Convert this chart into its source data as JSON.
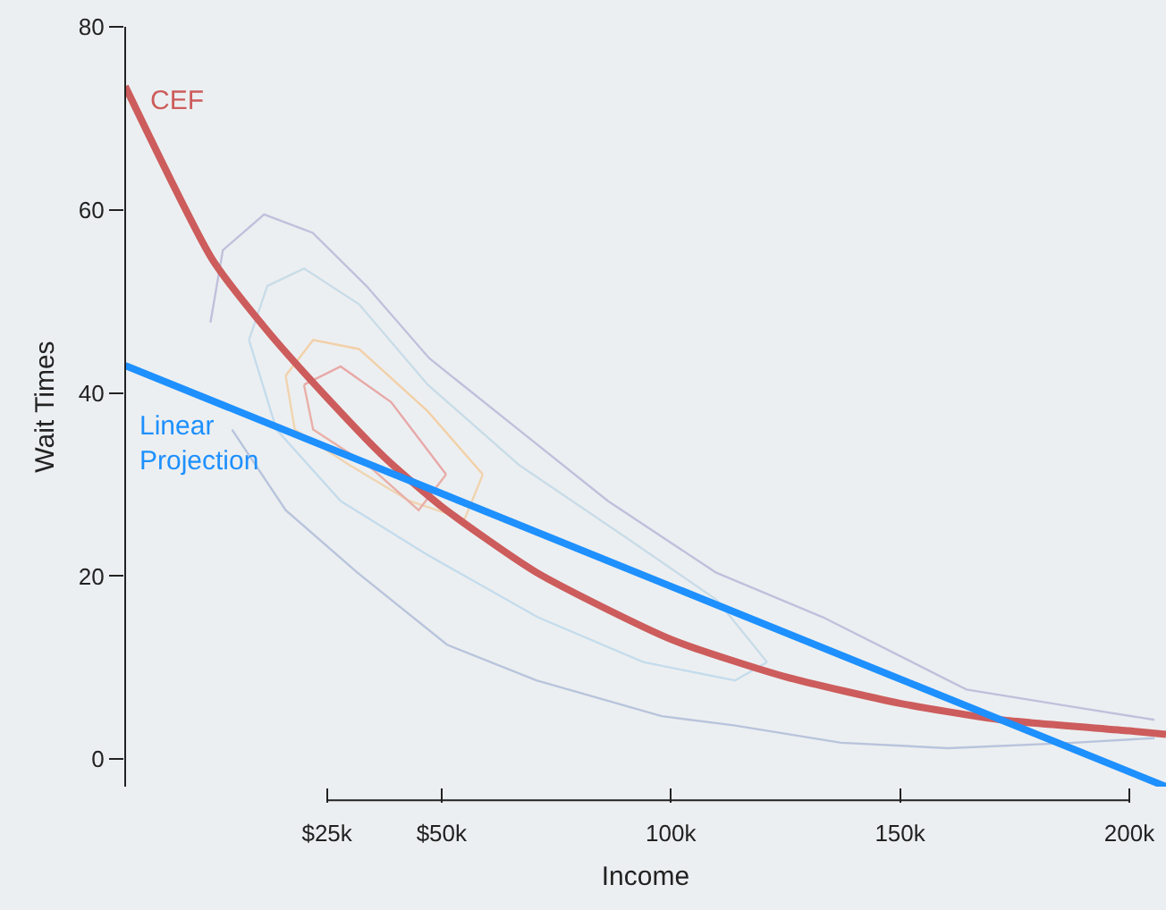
{
  "chart_data": {
    "type": "line",
    "xlabel": "Income",
    "ylabel": "Wait Times",
    "xlim": [
      -19000,
      208000
    ],
    "ylim": [
      -3,
      80
    ],
    "xticks": [
      {
        "value": 25000,
        "label": "$25k"
      },
      {
        "value": 50000,
        "label": "$50k"
      },
      {
        "value": 100000,
        "label": "100k"
      },
      {
        "value": 150000,
        "label": "150k"
      },
      {
        "value": 200000,
        "label": "200k"
      }
    ],
    "yticks": [
      0,
      20,
      40,
      60,
      80
    ],
    "grid": false,
    "legend": false,
    "marker": "none",
    "line_style": "solid",
    "series": [
      {
        "color": "#c0c0dc",
        "x": [
          -400,
          2300,
          11300,
          21900,
          33600,
          47300,
          66800,
          86300,
          109800,
          133200,
          164500,
          187900,
          205500
        ],
        "values": [
          47.7,
          55.6,
          59.5,
          57.5,
          51.7,
          43.8,
          36,
          28.2,
          20.4,
          15.5,
          7.6,
          5.7,
          4.3
        ]
      },
      {
        "color": "#b8c4dc",
        "x": [
          4300,
          16000,
          31600,
          51200,
          70700,
          98000,
          113700,
          137100,
          160500,
          187900,
          205500
        ],
        "values": [
          36,
          27.2,
          20.4,
          12.5,
          8.6,
          4.7,
          3.7,
          1.8,
          1.2,
          1.8,
          2.3
        ]
      },
      {
        "color": "#c8dce8",
        "x": [
          8000,
          12000,
          20000,
          32000,
          47000,
          67000,
          90000,
          110000,
          121000
        ],
        "values": [
          45.8,
          51.7,
          53.6,
          49.7,
          40.9,
          32.1,
          24.3,
          17.4,
          10.6
        ]
      },
      {
        "color": "#c4dcec",
        "x": [
          8000,
          14000,
          28000,
          47000,
          71000,
          94000,
          114000,
          121000
        ],
        "values": [
          45.8,
          36,
          28.2,
          22.3,
          15.5,
          10.6,
          8.6,
          10.6
        ]
      },
      {
        "color": "#f2d0a8",
        "x": [
          16000,
          22000,
          32000,
          47000,
          59000
        ],
        "values": [
          41.9,
          45.8,
          44.8,
          38,
          31.1
        ]
      },
      {
        "color": "#f0d4b0",
        "x": [
          16000,
          18000,
          30000,
          43000,
          55000,
          59000
        ],
        "values": [
          41.9,
          36,
          32.1,
          28.2,
          26.2,
          31.1
        ]
      },
      {
        "color": "#e8a8a8",
        "x": [
          20000,
          28000,
          39000,
          51000
        ],
        "values": [
          40.9,
          42.9,
          39,
          31.1
        ]
      },
      {
        "color": "#e8b0a8",
        "x": [
          20000,
          22000,
          34000,
          45000,
          51000
        ],
        "values": [
          40.9,
          36,
          32.1,
          27.2,
          31.1
        ]
      },
      {
        "name": "CEF",
        "color": "#cd5c5c",
        "x": [
          -19000,
          0,
          12000,
          25000,
          37500,
          50000,
          70700,
          100000,
          125000,
          150000,
          172000,
          200000,
          208000
        ],
        "values": [
          73.5,
          54.6,
          46.8,
          39.5,
          33,
          27.6,
          20.4,
          13.1,
          9,
          6.1,
          4.3,
          3.1,
          2.7
        ]
      },
      {
        "name": "Linear Projection",
        "color": "#1e90ff",
        "x": [
          -19000,
          208000
        ],
        "values": [
          43,
          -3
        ]
      }
    ]
  }
}
